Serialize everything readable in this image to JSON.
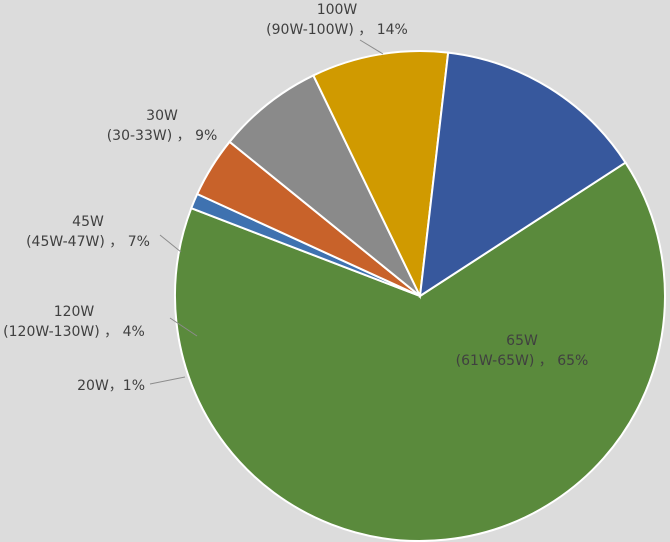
{
  "chart_data": {
    "type": "pie",
    "title": "",
    "slices": [
      {
        "name": "65W",
        "range": "(61W-65W)",
        "value": 65,
        "label_line1": "65W",
        "label_line2": "(61W-65W) ， 65%",
        "color": "#5a8a3c"
      },
      {
        "name": "20W",
        "range": "",
        "value": 1,
        "label_line1": "20W，1%",
        "label_line2": "",
        "color": "#3f72b0"
      },
      {
        "name": "120W",
        "range": "(120W-130W)",
        "value": 4,
        "label_line1": "120W",
        "label_line2": "(120W-130W) ， 4%",
        "color": "#c8622a"
      },
      {
        "name": "45W",
        "range": "(45W-47W)",
        "value": 7,
        "label_line1": "45W",
        "label_line2": "(45W-47W) ， 7%",
        "color": "#8a8a8a"
      },
      {
        "name": "30W",
        "range": "(30-33W)",
        "value": 9,
        "label_line1": "30W",
        "label_line2": "(30-33W) ， 9%",
        "color": "#d09a00"
      },
      {
        "name": "100W",
        "range": "(90W-100W)",
        "value": 14,
        "label_line1": "100W",
        "label_line2": "(90W-100W) ， 14%",
        "color": "#37589d"
      }
    ],
    "start_angle_deg": 57,
    "legend": "none"
  }
}
